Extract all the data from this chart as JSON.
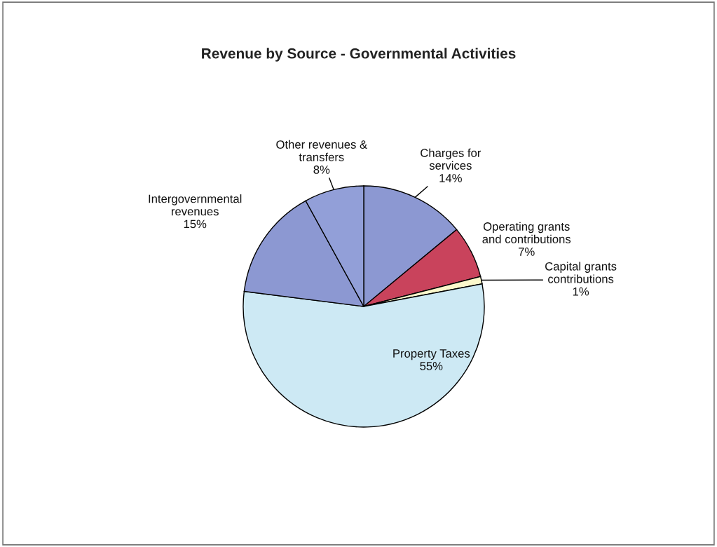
{
  "chart_data": {
    "type": "pie",
    "title": "Revenue by Source - Governmental Activities",
    "categories": [
      "Charges for\nservices",
      "Operating grants\nand contributions",
      "Capital grants\ncontributions",
      "Property Taxes",
      "Intergovernmental\nrevenues",
      "Other revenues &\ntransfers"
    ],
    "values": [
      14,
      7,
      1,
      55,
      15,
      8
    ],
    "value_labels": [
      "14%",
      "7%",
      "1%",
      "55%",
      "15%",
      "8%"
    ],
    "colors": [
      "#8c98d2",
      "#c9435c",
      "#fbf8cc",
      "#cde9f4",
      "#8c98d2",
      "#929fd8"
    ],
    "legend": false
  }
}
